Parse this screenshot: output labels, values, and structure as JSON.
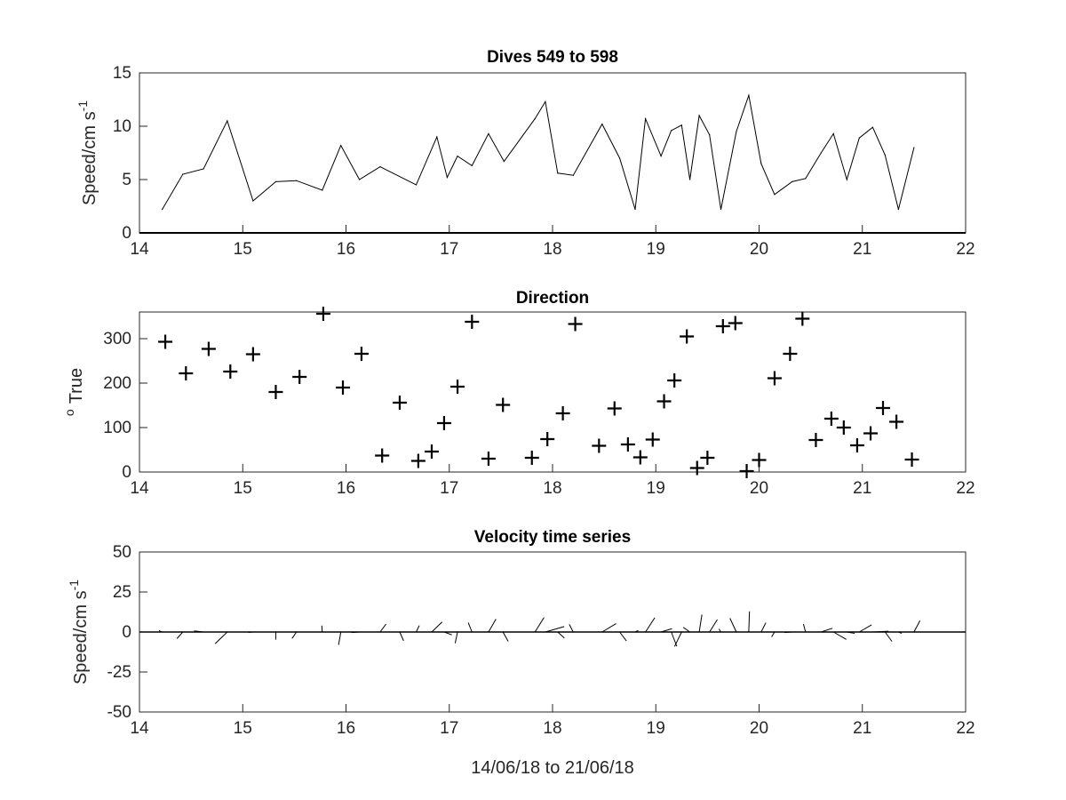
{
  "chart_data": [
    {
      "type": "line",
      "title": "Dives 549 to 598",
      "ylabel": "Speed/cm s",
      "ylabel_superscript": "-1",
      "xlim": [
        14,
        22
      ],
      "ylim": [
        0,
        15
      ],
      "xticks": [
        14,
        15,
        16,
        17,
        18,
        19,
        20,
        21,
        22
      ],
      "yticks": [
        0,
        5,
        10,
        15
      ],
      "color": "#000000",
      "x": [
        14.22,
        14.42,
        14.62,
        14.85,
        15.1,
        15.32,
        15.52,
        15.77,
        15.95,
        16.13,
        16.33,
        16.68,
        16.88,
        16.98,
        17.08,
        17.22,
        17.38,
        17.53,
        17.83,
        17.93,
        18.05,
        18.2,
        18.48,
        18.65,
        18.8,
        18.9,
        19.05,
        19.15,
        19.25,
        19.33,
        19.42,
        19.52,
        19.63,
        19.78,
        19.9,
        20.02,
        20.15,
        20.32,
        20.45,
        20.6,
        20.72,
        20.85,
        20.97,
        21.1,
        21.22,
        21.35,
        21.5
      ],
      "y": [
        2.2,
        5.5,
        6.0,
        10.5,
        3.0,
        4.8,
        4.9,
        4.0,
        8.2,
        5.0,
        6.2,
        4.5,
        9.0,
        5.2,
        7.2,
        6.3,
        9.3,
        6.7,
        10.7,
        12.3,
        5.6,
        5.4,
        10.2,
        7.0,
        2.2,
        10.7,
        7.2,
        9.6,
        10.1,
        5.0,
        11.0,
        9.2,
        2.2,
        9.5,
        12.9,
        6.5,
        3.6,
        4.8,
        5.1,
        7.5,
        9.3,
        5.0,
        8.9,
        9.9,
        7.3,
        2.2,
        8.0
      ]
    },
    {
      "type": "scatter",
      "title": "Direction",
      "ylabel": "True",
      "ylabel_superscript": "o",
      "xlim": [
        14,
        22
      ],
      "ylim": [
        0,
        360
      ],
      "xticks": [
        14,
        15,
        16,
        17,
        18,
        19,
        20,
        21,
        22
      ],
      "yticks": [
        0,
        100,
        200,
        300
      ],
      "marker": "+",
      "color": "#000000",
      "x": [
        14.25,
        14.45,
        14.67,
        14.88,
        15.1,
        15.32,
        15.55,
        15.78,
        15.97,
        16.15,
        16.35,
        16.52,
        16.7,
        16.83,
        16.95,
        17.08,
        17.22,
        17.38,
        17.52,
        17.8,
        17.95,
        18.1,
        18.22,
        18.45,
        18.6,
        18.73,
        18.85,
        18.97,
        19.08,
        19.18,
        19.3,
        19.4,
        19.5,
        19.65,
        19.77,
        19.88,
        20.0,
        20.15,
        20.3,
        20.42,
        20.55,
        20.7,
        20.82,
        20.95,
        21.08,
        21.2,
        21.33,
        21.48
      ],
      "y": [
        293,
        222,
        277,
        226,
        265,
        180,
        214,
        356,
        190,
        266,
        37,
        156,
        25,
        46,
        110,
        192,
        338,
        30,
        151,
        32,
        74,
        132,
        333,
        59,
        143,
        62,
        33,
        73,
        159,
        206,
        305,
        9,
        32,
        328,
        335,
        2,
        27,
        211,
        266,
        345,
        72,
        120,
        100,
        60,
        87,
        144,
        113,
        28
      ]
    },
    {
      "type": "quiver",
      "title": "Velocity time series",
      "xlabel": "14/06/18 to 21/06/18",
      "ylabel": "Speed/cm s",
      "ylabel_superscript": "-1",
      "xlim": [
        14,
        22
      ],
      "ylim": [
        -50,
        50
      ],
      "xticks": [
        14,
        15,
        16,
        17,
        18,
        19,
        20,
        21,
        22
      ],
      "yticks": [
        -50,
        -25,
        0,
        25,
        50
      ],
      "color": "#000000",
      "x": [
        14.22,
        14.42,
        14.62,
        14.85,
        15.1,
        15.32,
        15.52,
        15.77,
        15.95,
        16.13,
        16.33,
        16.52,
        16.68,
        16.83,
        16.95,
        17.08,
        17.22,
        17.38,
        17.52,
        17.83,
        17.93,
        18.05,
        18.2,
        18.48,
        18.65,
        18.8,
        18.9,
        19.05,
        19.15,
        19.25,
        19.33,
        19.42,
        19.52,
        19.63,
        19.78,
        19.9,
        20.02,
        20.15,
        20.32,
        20.45,
        20.6,
        20.72,
        20.85,
        20.97,
        21.1,
        21.22,
        21.35,
        21.5
      ],
      "speed": [
        2.2,
        5.5,
        6.0,
        10.5,
        3.0,
        4.8,
        4.9,
        4.0,
        8.2,
        5.0,
        6.2,
        6.0,
        4.5,
        9.0,
        5.2,
        7.2,
        6.3,
        9.3,
        6.7,
        10.7,
        12.3,
        5.6,
        5.4,
        10.2,
        7.0,
        2.2,
        10.7,
        7.2,
        9.6,
        10.1,
        5.0,
        11.0,
        9.2,
        2.2,
        9.5,
        12.9,
        6.5,
        3.6,
        4.8,
        5.1,
        7.5,
        9.3,
        5.0,
        8.9,
        9.9,
        7.3,
        2.2,
        8.0
      ],
      "direction_deg": [
        293,
        222,
        277,
        226,
        265,
        180,
        214,
        356,
        190,
        266,
        37,
        156,
        25,
        46,
        110,
        192,
        338,
        30,
        151,
        32,
        74,
        132,
        333,
        59,
        143,
        62,
        33,
        73,
        159,
        206,
        305,
        9,
        32,
        328,
        335,
        2,
        27,
        211,
        266,
        345,
        72,
        120,
        100,
        60,
        87,
        144,
        113,
        28
      ]
    }
  ]
}
